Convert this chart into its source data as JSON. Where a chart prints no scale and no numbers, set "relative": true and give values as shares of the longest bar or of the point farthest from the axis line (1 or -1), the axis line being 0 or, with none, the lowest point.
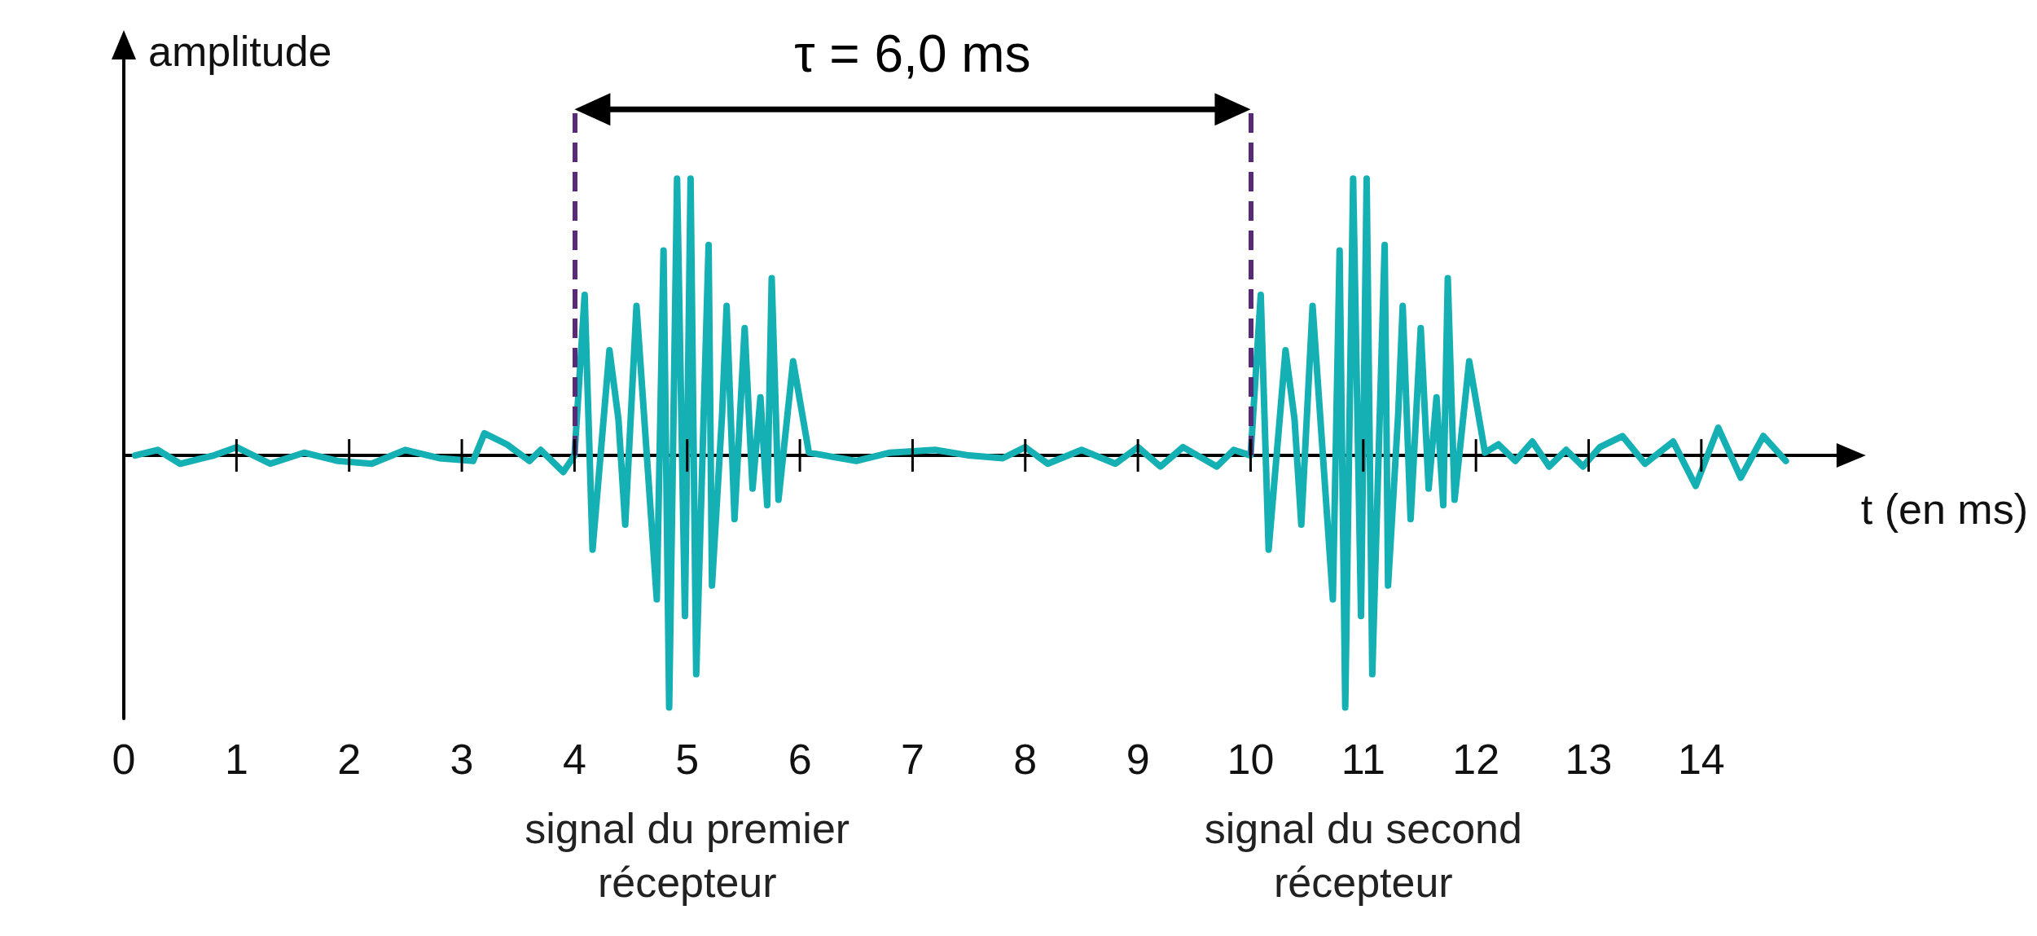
{
  "chart_data": {
    "type": "line",
    "relative": true,
    "xlabel": "t (en ms)",
    "ylabel": "amplitude",
    "xlim": [
      0,
      15.2
    ],
    "xticks": [
      0,
      1,
      2,
      3,
      4,
      5,
      6,
      7,
      8,
      9,
      10,
      11,
      12,
      13,
      14
    ],
    "grid": false,
    "marker": "none",
    "line_style": "solid",
    "series": [
      {
        "color": "#14b0b4",
        "x": [
          0.1,
          0.3,
          0.5,
          0.8,
          1.0,
          1.3,
          1.6,
          1.9,
          2.2,
          2.5,
          2.8,
          3.1,
          3.2,
          3.4,
          3.6,
          3.7,
          3.9,
          4.0,
          4.09,
          4.16,
          4.31,
          4.39,
          4.45,
          4.55,
          4.73,
          4.79,
          4.84,
          4.91,
          4.98,
          5.03,
          5.08,
          5.19,
          5.22,
          5.31,
          5.35,
          5.42,
          5.51,
          5.58,
          5.65,
          5.71,
          5.75,
          5.81,
          5.94,
          6.08,
          6.5,
          6.8,
          7.2,
          7.5,
          7.8,
          8.0,
          8.2,
          8.5,
          8.8,
          9.0,
          9.2,
          9.4,
          9.7,
          9.85,
          10.0,
          10.09,
          10.16,
          10.31,
          10.39,
          10.45,
          10.55,
          10.73,
          10.79,
          10.84,
          10.91,
          10.98,
          11.03,
          11.08,
          11.19,
          11.22,
          11.31,
          11.35,
          11.42,
          11.51,
          11.58,
          11.65,
          11.71,
          11.75,
          11.81,
          11.94,
          12.08,
          12.2,
          12.35,
          12.5,
          12.65,
          12.8,
          12.95,
          13.1,
          13.3,
          13.5,
          13.75,
          13.95,
          14.15,
          14.35,
          14.55,
          14.75
        ],
        "values": [
          0,
          0.02,
          -0.03,
          0,
          0.03,
          -0.03,
          0.01,
          -0.02,
          -0.03,
          0.02,
          -0.01,
          -0.02,
          0.08,
          0.04,
          -0.02,
          0.02,
          -0.06,
          0,
          0.58,
          -0.34,
          0.38,
          0.13,
          -0.25,
          0.54,
          -0.52,
          0.74,
          -0.91,
          1,
          -0.58,
          1,
          -0.79,
          0.76,
          -0.47,
          0.15,
          0.54,
          -0.23,
          0.46,
          -0.12,
          0.21,
          -0.18,
          0.64,
          -0.16,
          0.34,
          0.01,
          -0.02,
          0.01,
          0.02,
          0,
          -0.01,
          0.03,
          -0.03,
          0.02,
          -0.03,
          0.03,
          -0.04,
          0.03,
          -0.04,
          0.02,
          0,
          0.58,
          -0.34,
          0.38,
          0.13,
          -0.25,
          0.54,
          -0.52,
          0.74,
          -0.91,
          1,
          -0.58,
          1,
          -0.79,
          0.76,
          -0.47,
          0.15,
          0.54,
          -0.23,
          0.46,
          -0.12,
          0.21,
          -0.18,
          0.64,
          -0.16,
          0.34,
          0.01,
          0.04,
          -0.02,
          0.05,
          -0.04,
          0.02,
          -0.04,
          0.03,
          0.07,
          -0.03,
          0.05,
          -0.11,
          0.1,
          -0.08,
          0.07,
          -0.02
        ]
      }
    ],
    "ref_lines": [
      {
        "axis": "x",
        "value": 4,
        "color": "#5a2a7a",
        "line_style": "dashed"
      },
      {
        "axis": "x",
        "value": 10,
        "color": "#5a2a7a",
        "line_style": "dashed"
      }
    ],
    "annotations": [
      "τ = 6,0 ms",
      "signal du premier\nrécepteur",
      "signal du second\nrécepteur"
    ]
  }
}
